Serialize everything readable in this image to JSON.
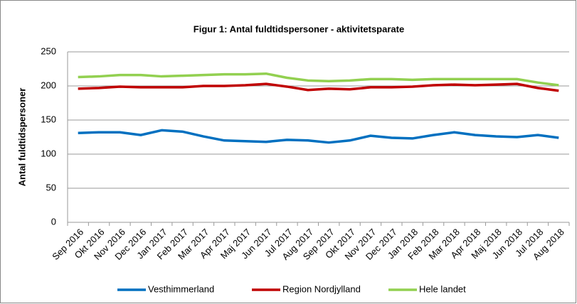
{
  "chart_data": {
    "type": "line",
    "title": "Figur 1: Antal fuldtidspersoner  - aktivitetsparate",
    "y_label": "Antal fuldtidspersoner",
    "categories": [
      "Sep 2016",
      "Okt 2016",
      "Nov 2016",
      "Dec 2016",
      "Jan 2017",
      "Feb 2017",
      "Mar 2017",
      "Apr 2017",
      "Maj 2017",
      "Jun 2017",
      "Jul 2017",
      "Aug 2017",
      "Sep 2017",
      "Okt 2017",
      "Nov 2017",
      "Dec 2017",
      "Jan 2018",
      "Feb 2018",
      "Mar 2018",
      "Apr 2018",
      "Maj 2018",
      "Jun 2018",
      "Jul 2018",
      "Aug 2018"
    ],
    "series": [
      {
        "name": "Vesthimmerland",
        "color": "#0070c0",
        "values": [
          131,
          132,
          132,
          128,
          135,
          133,
          126,
          120,
          119,
          118,
          121,
          120,
          117,
          120,
          127,
          124,
          123,
          128,
          132,
          128,
          126,
          125,
          128,
          124
        ]
      },
      {
        "name": "Region Nordjylland",
        "color": "#c00000",
        "values": [
          196,
          197,
          199,
          198,
          198,
          198,
          200,
          200,
          201,
          203,
          199,
          194,
          196,
          195,
          198,
          198,
          199,
          201,
          202,
          201,
          202,
          203,
          197,
          193
        ]
      },
      {
        "name": "Hele landet",
        "color": "#92d050",
        "values": [
          213,
          214,
          216,
          216,
          214,
          215,
          216,
          217,
          217,
          218,
          212,
          208,
          207,
          208,
          210,
          210,
          209,
          210,
          210,
          210,
          210,
          210,
          205,
          201
        ]
      }
    ],
    "ylim": [
      0,
      250
    ],
    "yticks": [
      0,
      50,
      100,
      150,
      200,
      250
    ],
    "grid": true,
    "legend": "bottom"
  }
}
